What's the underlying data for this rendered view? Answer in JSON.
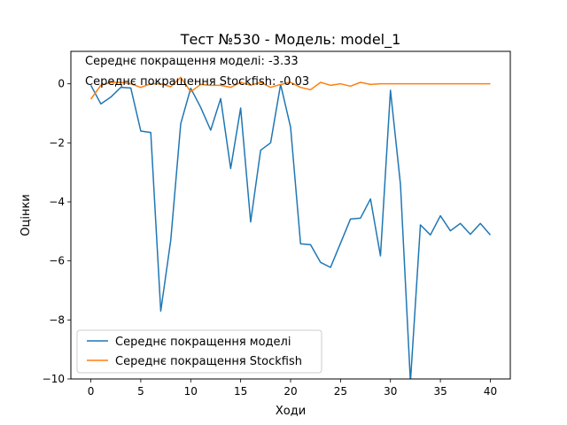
{
  "chart_data": {
    "type": "line",
    "title": "Тест №530 - Модель: model_1",
    "xlabel": "Ходи",
    "ylabel": "Оцінки",
    "xlim": [
      -2,
      42
    ],
    "ylim": [
      -10,
      1.1
    ],
    "xticks": [
      0,
      5,
      10,
      15,
      20,
      25,
      30,
      35,
      40
    ],
    "yticks": [
      -10,
      -8,
      -6,
      -4,
      -2,
      0
    ],
    "grid": false,
    "legend_position": "lower-left",
    "annotations": [
      "Середнє покращення моделі: -3.33",
      "Середнє покращення Stockfish: -0.03"
    ],
    "x": [
      0,
      1,
      2,
      3,
      4,
      5,
      6,
      7,
      8,
      9,
      10,
      11,
      12,
      13,
      14,
      15,
      16,
      17,
      18,
      19,
      20,
      21,
      22,
      23,
      24,
      25,
      26,
      27,
      28,
      29,
      30,
      31,
      32,
      33,
      34,
      35,
      36,
      37,
      38,
      39,
      40
    ],
    "series": [
      {
        "name": "Середнє покращення моделі",
        "color": "#1f77b4",
        "values": [
          -0.05,
          -0.68,
          -0.45,
          -0.12,
          -0.14,
          -1.6,
          -1.65,
          -7.7,
          -5.3,
          -1.35,
          -0.15,
          -0.8,
          -1.57,
          -0.5,
          -2.87,
          -0.82,
          -4.68,
          -2.25,
          -2.0,
          -0.02,
          -1.47,
          -5.42,
          -5.45,
          -6.05,
          -6.22,
          -5.4,
          -4.58,
          -4.55,
          -3.9,
          -5.83,
          -0.22,
          -3.4,
          -10.1,
          -4.78,
          -5.12,
          -4.47,
          -4.98,
          -4.73,
          -5.1,
          -4.73,
          -5.12
        ]
      },
      {
        "name": "Середнє покращення Stockfish",
        "color": "#ff7f0e",
        "values": [
          -0.52,
          -0.05,
          0.05,
          0.05,
          0.0,
          -0.12,
          0.0,
          0.0,
          -0.1,
          0.22,
          -0.27,
          -0.02,
          -0.05,
          -0.05,
          -0.12,
          0.05,
          -0.05,
          0.05,
          -0.12,
          -0.02,
          0.05,
          -0.12,
          -0.2,
          0.05,
          -0.05,
          0.0,
          -0.08,
          0.05,
          -0.02,
          0.0,
          0.0,
          0.0,
          0.0,
          0.0,
          0.0,
          0.0,
          0.0,
          0.0,
          0.0,
          0.0,
          0.0
        ]
      }
    ]
  }
}
